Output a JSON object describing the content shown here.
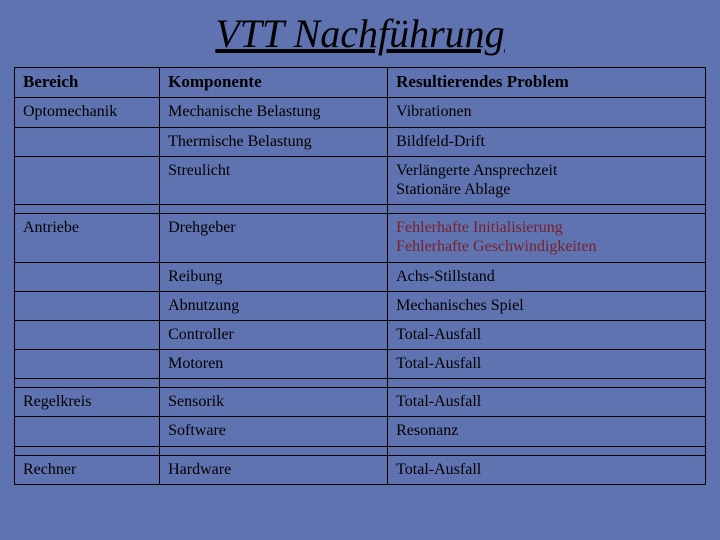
{
  "title": "VTT Nachführung",
  "colors": {
    "background": "#5f73b0",
    "text": "#000000",
    "highlight": "#7a1f2a",
    "border": "#000000"
  },
  "columns": [
    "Bereich",
    "Komponente",
    "Resultierendes Problem"
  ],
  "column_widths_pct": [
    21,
    33,
    46
  ],
  "font": {
    "title_size_pt": 30,
    "cell_size_pt": 12,
    "header_size_pt": 13
  },
  "groups": [
    {
      "bereich": "Optomechanik",
      "rows": [
        {
          "komponente": "Mechanische Belastung",
          "problem": "Vibrationen"
        },
        {
          "komponente": "Thermische Belastung",
          "problem": "Bildfeld-Drift"
        },
        {
          "komponente": "Streulicht",
          "problem": "Verlängerte Ansprechzeit\nStationäre Ablage"
        }
      ]
    },
    {
      "bereich": "Antriebe",
      "rows": [
        {
          "komponente": "Drehgeber",
          "problem": "Fehlerhafte Initialisierung\nFehlerhafte Geschwindigkeiten",
          "highlight": true
        },
        {
          "komponente": "Reibung",
          "problem": "Achs-Stillstand"
        },
        {
          "komponente": "Abnutzung",
          "problem": "Mechanisches Spiel"
        },
        {
          "komponente": "Controller",
          "problem": "Total-Ausfall"
        },
        {
          "komponente": "Motoren",
          "problem": "Total-Ausfall"
        }
      ]
    },
    {
      "bereich": "Regelkreis",
      "rows": [
        {
          "komponente": "Sensorik",
          "problem": "Total-Ausfall"
        },
        {
          "komponente": "Software",
          "problem": "Resonanz"
        }
      ]
    },
    {
      "bereich": "Rechner",
      "rows": [
        {
          "komponente": "Hardware",
          "problem": "Total-Ausfall"
        }
      ]
    }
  ]
}
